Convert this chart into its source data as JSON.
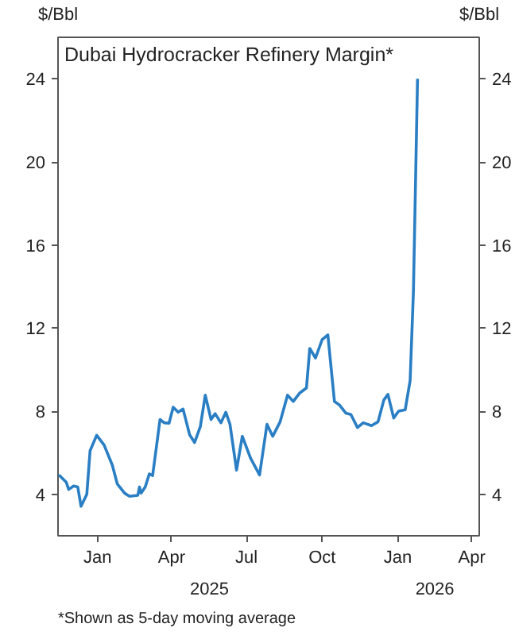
{
  "chart_data": {
    "type": "line",
    "title": "Dubai Hydrocracker Refinery Margin*",
    "ylabel": "$/Bbl",
    "y2label": "$/Bbl",
    "annotations": [
      "2025",
      "2026",
      "*Shown as 5-day moving average"
    ],
    "xlim": [
      "2024-11-14",
      "2026-04-10"
    ],
    "xticks": [
      {
        "value": "2025-01-01",
        "label": "Jan"
      },
      {
        "value": "2025-04-01",
        "label": "Apr"
      },
      {
        "value": "2025-07-01",
        "label": "Jul"
      },
      {
        "value": "2025-10-01",
        "label": "Oct"
      },
      {
        "value": "2026-01-01",
        "label": "Jan"
      },
      {
        "value": "2026-04-01",
        "label": "Apr"
      }
    ],
    "ylim": [
      2,
      26
    ],
    "yticks": [
      4,
      8,
      12,
      16,
      20,
      24
    ],
    "y2lim": [
      2,
      26
    ],
    "y2ticks": [
      4,
      8,
      12,
      16,
      20,
      24
    ],
    "grid": false,
    "marker": "none",
    "line_style": "solid",
    "x": [
      "2024-11-15",
      "2024-11-24",
      "2024-11-27",
      "2024-12-03",
      "2024-12-08",
      "2024-12-12",
      "2024-12-19",
      "2024-12-23",
      "2024-12-31",
      "2025-01-09",
      "2025-01-19",
      "2025-01-25",
      "2025-02-03",
      "2025-02-09",
      "2025-02-19",
      "2025-02-21",
      "2025-02-23",
      "2025-02-28",
      "2025-03-05",
      "2025-03-09",
      "2025-03-18",
      "2025-03-23",
      "2025-03-29",
      "2025-04-03",
      "2025-04-09",
      "2025-04-15",
      "2025-04-23",
      "2025-04-29",
      "2025-05-06",
      "2025-05-12",
      "2025-05-19",
      "2025-05-24",
      "2025-05-31",
      "2025-06-06",
      "2025-06-11",
      "2025-06-19",
      "2025-06-26",
      "2025-07-06",
      "2025-07-17",
      "2025-07-26",
      "2025-08-02",
      "2025-08-11",
      "2025-08-20",
      "2025-08-27",
      "2025-09-04",
      "2025-09-12",
      "2025-09-16",
      "2025-09-23",
      "2025-10-01",
      "2025-10-08",
      "2025-10-16",
      "2025-10-22",
      "2025-10-30",
      "2025-11-05",
      "2025-11-13",
      "2025-11-20",
      "2025-11-30",
      "2025-12-08",
      "2025-12-15",
      "2025-12-20",
      "2025-12-27",
      "2026-01-02",
      "2026-01-10",
      "2026-01-16",
      "2026-01-20",
      "2026-01-25"
    ],
    "series": [
      {
        "color": "#2a7fc4",
        "values": [
          4.93,
          4.58,
          4.23,
          4.4,
          4.35,
          3.42,
          4.0,
          6.1,
          6.84,
          6.37,
          5.4,
          4.5,
          4.05,
          3.9,
          3.95,
          4.35,
          4.05,
          4.35,
          4.98,
          4.9,
          7.6,
          7.44,
          7.42,
          8.19,
          7.95,
          8.1,
          6.86,
          6.49,
          7.26,
          8.77,
          7.6,
          7.88,
          7.44,
          7.95,
          7.37,
          5.16,
          6.79,
          5.74,
          4.93,
          7.37,
          6.79,
          7.49,
          8.77,
          8.47,
          8.88,
          9.12,
          11.02,
          10.56,
          11.44,
          11.67,
          8.47,
          8.3,
          7.9,
          7.84,
          7.21,
          7.44,
          7.3,
          7.49,
          8.53,
          8.81,
          7.67,
          8.0,
          8.07,
          9.47,
          13.77,
          24.0
        ]
      }
    ]
  }
}
